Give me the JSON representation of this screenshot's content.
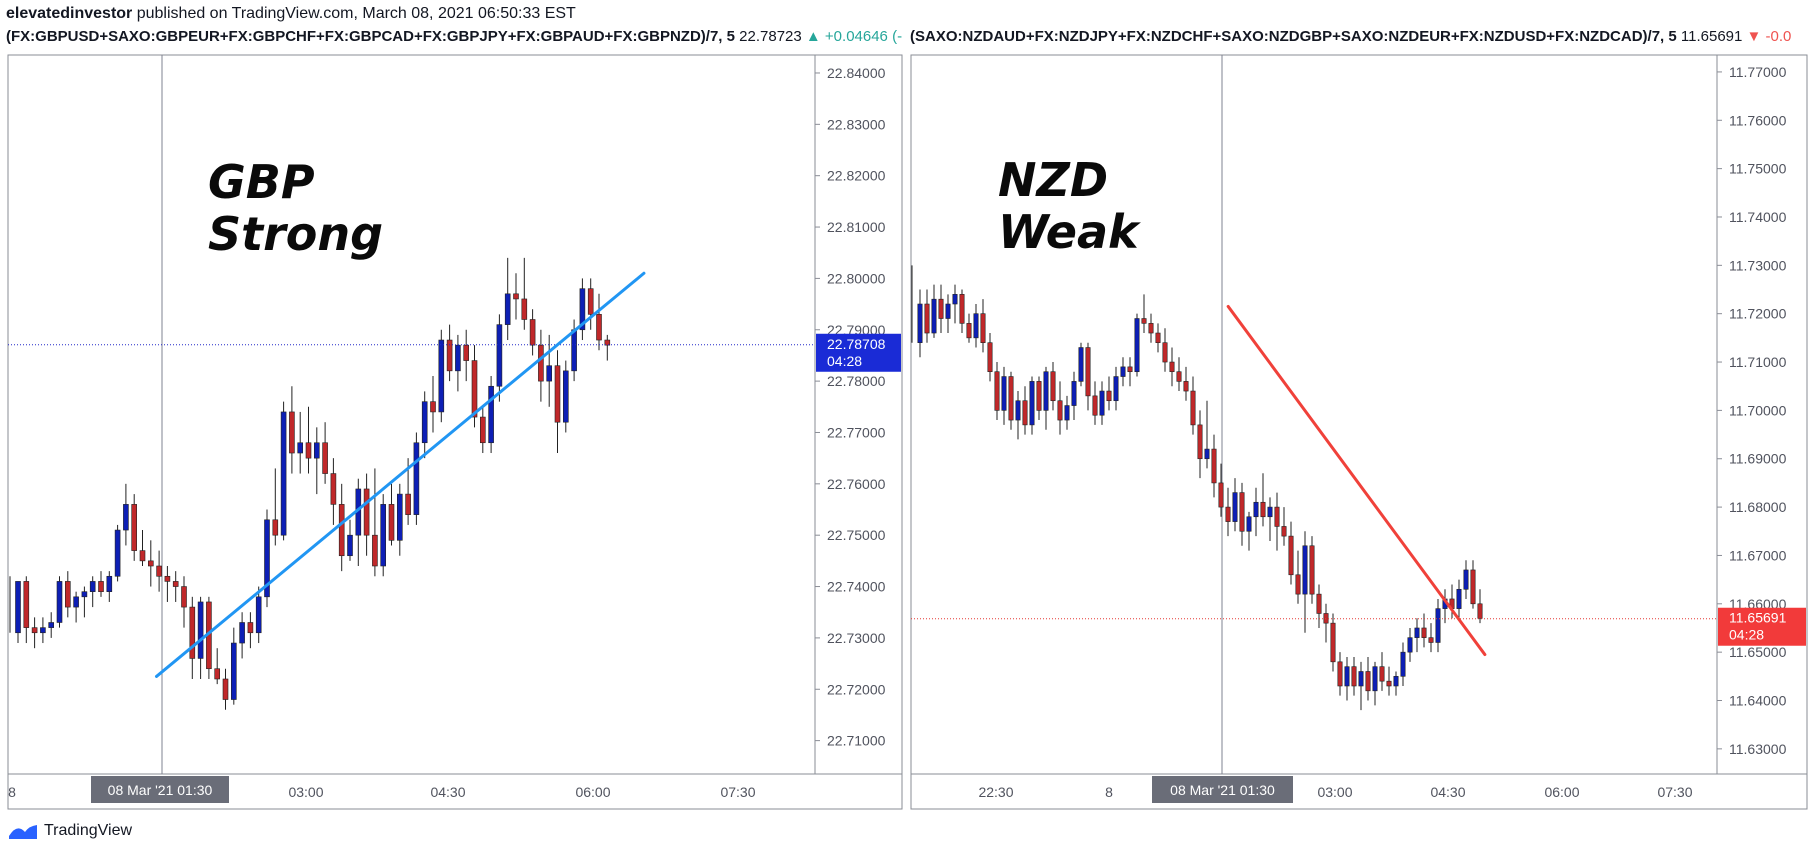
{
  "header": {
    "user": "elevatedinvestor",
    "publish_text": "published on TradingView.com, March 08, 2021 06:50:33 EST"
  },
  "footer": {
    "brand": "TradingView",
    "icon": "tradingview-logo-icon"
  },
  "colors": {
    "bull": "#0d1fb5",
    "bear": "#c0282a",
    "blue_line": "#2196f3",
    "red_line": "#f0413a",
    "up": "#26a69a",
    "down": "#ef5350"
  },
  "chart_data": [
    {
      "type": "candlestick",
      "symbol": "(FX:GBPUSD+SAXO:GBPEUR+FX:GBPCHF+FX:GBPCAD+FX:GBPJPY+FX:GBPAUD+FX:GBPNZD)/7, 5",
      "last": "22.78723",
      "change": "▲ +0.04646 (-",
      "annotation": [
        "GBP",
        "Strong"
      ],
      "price_label": "22.78708",
      "countdown": "04:28",
      "ylim": [
        22.7035,
        22.8435
      ],
      "yticks": [
        "22.84000",
        "22.83000",
        "22.82000",
        "22.81000",
        "22.80000",
        "22.79000",
        "22.78000",
        "22.77000",
        "22.76000",
        "22.75000",
        "22.74000",
        "22.73000",
        "22.72000",
        "22.71000"
      ],
      "xticks": [
        "8",
        "03:00",
        "04:30",
        "06:00",
        "07:30"
      ],
      "crosshair_label": "08 Mar '21  01:30",
      "start": [
        22.742,
        22.731
      ],
      "candles": [
        [
          22.731,
          22.741,
          22.729,
          22.741
        ],
        [
          22.741,
          22.742,
          22.729,
          22.732
        ],
        [
          22.732,
          22.734,
          22.728,
          22.731
        ],
        [
          22.731,
          22.734,
          22.729,
          22.732
        ],
        [
          22.732,
          22.735,
          22.73,
          22.733
        ],
        [
          22.733,
          22.742,
          22.732,
          22.741
        ],
        [
          22.741,
          22.743,
          22.734,
          22.736
        ],
        [
          22.736,
          22.739,
          22.733,
          22.738
        ],
        [
          22.738,
          22.74,
          22.734,
          22.739
        ],
        [
          22.739,
          22.742,
          22.736,
          22.741
        ],
        [
          22.741,
          22.743,
          22.738,
          22.739
        ],
        [
          22.739,
          22.743,
          22.737,
          22.742
        ],
        [
          22.742,
          22.752,
          22.741,
          22.751
        ],
        [
          22.751,
          22.76,
          22.748,
          22.756
        ],
        [
          22.756,
          22.758,
          22.745,
          22.747
        ],
        [
          22.747,
          22.751,
          22.744,
          22.745
        ],
        [
          22.745,
          22.749,
          22.74,
          22.744
        ],
        [
          22.744,
          22.747,
          22.739,
          22.742
        ],
        [
          22.742,
          22.744,
          22.737,
          22.741
        ],
        [
          22.741,
          22.743,
          22.737,
          22.74
        ],
        [
          22.74,
          22.742,
          22.732,
          22.736
        ],
        [
          22.736,
          22.738,
          22.722,
          22.726
        ],
        [
          22.726,
          22.738,
          22.722,
          22.737
        ],
        [
          22.737,
          22.738,
          22.722,
          22.724
        ],
        [
          22.724,
          22.728,
          22.721,
          22.722
        ],
        [
          22.722,
          22.724,
          22.716,
          22.718
        ],
        [
          22.718,
          22.732,
          22.717,
          22.729
        ],
        [
          22.729,
          22.735,
          22.726,
          22.733
        ],
        [
          22.733,
          22.735,
          22.728,
          22.731
        ],
        [
          22.731,
          22.74,
          22.729,
          22.738
        ],
        [
          22.738,
          22.755,
          22.736,
          22.753
        ],
        [
          22.753,
          22.763,
          22.748,
          22.75
        ],
        [
          22.75,
          22.776,
          22.749,
          22.774
        ],
        [
          22.774,
          22.779,
          22.762,
          22.766
        ],
        [
          22.766,
          22.774,
          22.762,
          22.768
        ],
        [
          22.768,
          22.775,
          22.762,
          22.765
        ],
        [
          22.765,
          22.771,
          22.758,
          22.768
        ],
        [
          22.768,
          22.772,
          22.76,
          22.762
        ],
        [
          22.762,
          22.765,
          22.752,
          22.756
        ],
        [
          22.756,
          22.76,
          22.743,
          22.746
        ],
        [
          22.746,
          22.753,
          22.745,
          22.75
        ],
        [
          22.75,
          22.761,
          22.744,
          22.759
        ],
        [
          22.759,
          22.762,
          22.746,
          22.75
        ],
        [
          22.75,
          22.763,
          22.742,
          22.744
        ],
        [
          22.744,
          22.758,
          22.742,
          22.756
        ],
        [
          22.756,
          22.76,
          22.748,
          22.749
        ],
        [
          22.749,
          22.76,
          22.746,
          22.758
        ],
        [
          22.758,
          22.765,
          22.752,
          22.754
        ],
        [
          22.754,
          22.77,
          22.752,
          22.768
        ],
        [
          22.768,
          22.778,
          22.765,
          22.776
        ],
        [
          22.776,
          22.781,
          22.77,
          22.774
        ],
        [
          22.774,
          22.79,
          22.772,
          22.788
        ],
        [
          22.788,
          22.791,
          22.78,
          22.782
        ],
        [
          22.782,
          22.789,
          22.778,
          22.787
        ],
        [
          22.787,
          22.79,
          22.78,
          22.784
        ],
        [
          22.784,
          22.787,
          22.771,
          22.773
        ],
        [
          22.773,
          22.775,
          22.766,
          22.768
        ],
        [
          22.768,
          22.781,
          22.766,
          22.779
        ],
        [
          22.779,
          22.793,
          22.776,
          22.791
        ],
        [
          22.791,
          22.804,
          22.788,
          22.797
        ],
        [
          22.797,
          22.801,
          22.792,
          22.796
        ],
        [
          22.796,
          22.804,
          22.79,
          22.792
        ],
        [
          22.792,
          22.794,
          22.785,
          22.787
        ],
        [
          22.787,
          22.79,
          22.776,
          22.78
        ],
        [
          22.78,
          22.789,
          22.775,
          22.783
        ],
        [
          22.783,
          22.786,
          22.766,
          22.772
        ],
        [
          22.772,
          22.784,
          22.77,
          22.782
        ],
        [
          22.782,
          22.792,
          22.78,
          22.79
        ],
        [
          22.79,
          22.8,
          22.788,
          22.798
        ],
        [
          22.798,
          22.8,
          22.79,
          22.793
        ],
        [
          22.793,
          22.797,
          22.786,
          22.788
        ],
        [
          22.788,
          22.789,
          22.784,
          22.787
        ]
      ],
      "trendline": {
        "from": [
          0.184,
          22.7225
        ],
        "to": [
          0.788,
          22.801
        ]
      },
      "vline_at": 0.137
    },
    {
      "type": "candlestick",
      "symbol": "(SAXO:NZDAUD+FX:NZDJPY+FX:NZDCHF+SAXO:NZDGBP+SAXO:NZDEUR+FX:NZDUSD+FX:NZDCAD)/7, 5",
      "last": "11.65691",
      "change": "▼ -0.0",
      "annotation": [
        "NZD",
        "Weak"
      ],
      "price_label": "11.65691",
      "countdown": "04:28",
      "ylim": [
        11.6248,
        11.7735
      ],
      "yticks": [
        "11.77000",
        "11.76000",
        "11.75000",
        "11.74000",
        "11.73000",
        "11.72000",
        "11.71000",
        "11.70000",
        "11.69000",
        "11.68000",
        "11.67000",
        "11.66000",
        "11.65000",
        "11.64000",
        "11.63000"
      ],
      "xticks": [
        "22:30",
        "8",
        "03:00",
        "04:30",
        "06:00",
        "07:30"
      ],
      "crosshair_label": "08 Mar '21  01:30",
      "start": [
        11.73,
        11.714
      ],
      "candles": [
        [
          11.714,
          11.725,
          11.711,
          11.722
        ],
        [
          11.722,
          11.725,
          11.714,
          11.716
        ],
        [
          11.716,
          11.726,
          11.715,
          11.723
        ],
        [
          11.723,
          11.726,
          11.716,
          11.719
        ],
        [
          11.719,
          11.724,
          11.716,
          11.722
        ],
        [
          11.722,
          11.726,
          11.718,
          11.724
        ],
        [
          11.724,
          11.725,
          11.716,
          11.718
        ],
        [
          11.718,
          11.72,
          11.714,
          11.715
        ],
        [
          11.715,
          11.722,
          11.713,
          11.72
        ],
        [
          11.72,
          11.723,
          11.712,
          11.714
        ],
        [
          11.714,
          11.716,
          11.706,
          11.708
        ],
        [
          11.708,
          11.71,
          11.698,
          11.7
        ],
        [
          11.7,
          11.709,
          11.697,
          11.707
        ],
        [
          11.707,
          11.708,
          11.696,
          11.698
        ],
        [
          11.698,
          11.704,
          11.694,
          11.702
        ],
        [
          11.702,
          11.705,
          11.695,
          11.697
        ],
        [
          11.697,
          11.707,
          11.695,
          11.706
        ],
        [
          11.706,
          11.707,
          11.698,
          11.7
        ],
        [
          11.7,
          11.709,
          11.696,
          11.708
        ],
        [
          11.708,
          11.71,
          11.7,
          11.702
        ],
        [
          11.702,
          11.706,
          11.695,
          11.698
        ],
        [
          11.698,
          11.703,
          11.696,
          11.701
        ],
        [
          11.701,
          11.708,
          11.698,
          11.706
        ],
        [
          11.706,
          11.714,
          11.705,
          11.713
        ],
        [
          11.713,
          11.714,
          11.7,
          11.703
        ],
        [
          11.703,
          11.706,
          11.697,
          11.699
        ],
        [
          11.699,
          11.706,
          11.697,
          11.704
        ],
        [
          11.704,
          11.707,
          11.7,
          11.702
        ],
        [
          11.702,
          11.709,
          11.7,
          11.707
        ],
        [
          11.707,
          11.711,
          11.705,
          11.709
        ],
        [
          11.709,
          11.711,
          11.705,
          11.708
        ],
        [
          11.708,
          11.72,
          11.707,
          11.719
        ],
        [
          11.719,
          11.724,
          11.716,
          11.718
        ],
        [
          11.718,
          11.72,
          11.714,
          11.716
        ],
        [
          11.716,
          11.718,
          11.712,
          11.714
        ],
        [
          11.714,
          11.717,
          11.708,
          11.71
        ],
        [
          11.71,
          11.713,
          11.705,
          11.708
        ],
        [
          11.708,
          11.711,
          11.704,
          11.706
        ],
        [
          11.706,
          11.709,
          11.702,
          11.704
        ],
        [
          11.704,
          11.707,
          11.695,
          11.697
        ],
        [
          11.697,
          11.7,
          11.686,
          11.69
        ],
        [
          11.69,
          11.702,
          11.688,
          11.692
        ],
        [
          11.692,
          11.695,
          11.682,
          11.685
        ],
        [
          11.685,
          11.689,
          11.678,
          11.68
        ],
        [
          11.68,
          11.684,
          11.674,
          11.677
        ],
        [
          11.677,
          11.686,
          11.675,
          11.683
        ],
        [
          11.683,
          11.685,
          11.672,
          11.675
        ],
        [
          11.675,
          11.679,
          11.671,
          11.678
        ],
        [
          11.678,
          11.684,
          11.674,
          11.681
        ],
        [
          11.681,
          11.687,
          11.676,
          11.678
        ],
        [
          11.678,
          11.682,
          11.673,
          11.68
        ],
        [
          11.68,
          11.683,
          11.671,
          11.676
        ],
        [
          11.676,
          11.68,
          11.672,
          11.674
        ],
        [
          11.674,
          11.677,
          11.664,
          11.666
        ],
        [
          11.666,
          11.671,
          11.66,
          11.662
        ],
        [
          11.662,
          11.675,
          11.654,
          11.672
        ],
        [
          11.672,
          11.674,
          11.66,
          11.662
        ],
        [
          11.662,
          11.664,
          11.655,
          11.658
        ],
        [
          11.658,
          11.66,
          11.652,
          11.656
        ],
        [
          11.656,
          11.658,
          11.646,
          11.648
        ],
        [
          11.648,
          11.65,
          11.641,
          11.643
        ],
        [
          11.643,
          11.649,
          11.64,
          11.647
        ],
        [
          11.647,
          11.649,
          11.641,
          11.643
        ],
        [
          11.643,
          11.648,
          11.638,
          11.646
        ],
        [
          11.646,
          11.649,
          11.64,
          11.642
        ],
        [
          11.642,
          11.648,
          11.639,
          11.647
        ],
        [
          11.647,
          11.65,
          11.642,
          11.644
        ],
        [
          11.644,
          11.647,
          11.641,
          11.643
        ],
        [
          11.643,
          11.646,
          11.641,
          11.645
        ],
        [
          11.645,
          11.652,
          11.643,
          11.65
        ],
        [
          11.65,
          11.655,
          11.648,
          11.653
        ],
        [
          11.653,
          11.657,
          11.65,
          11.655
        ],
        [
          11.655,
          11.658,
          11.651,
          11.653
        ],
        [
          11.653,
          11.656,
          11.65,
          11.652
        ],
        [
          11.652,
          11.661,
          11.65,
          11.659
        ],
        [
          11.659,
          11.663,
          11.656,
          11.661
        ],
        [
          11.661,
          11.664,
          11.657,
          11.659
        ],
        [
          11.659,
          11.665,
          11.657,
          11.663
        ],
        [
          11.663,
          11.669,
          11.661,
          11.667
        ],
        [
          11.667,
          11.669,
          11.659,
          11.66
        ],
        [
          11.66,
          11.663,
          11.656,
          11.657
        ]
      ],
      "trendline": {
        "from": [
          0.3935,
          11.7215
        ],
        "to": [
          0.712,
          11.6495
        ]
      },
      "vline_at": 0.3935
    }
  ]
}
